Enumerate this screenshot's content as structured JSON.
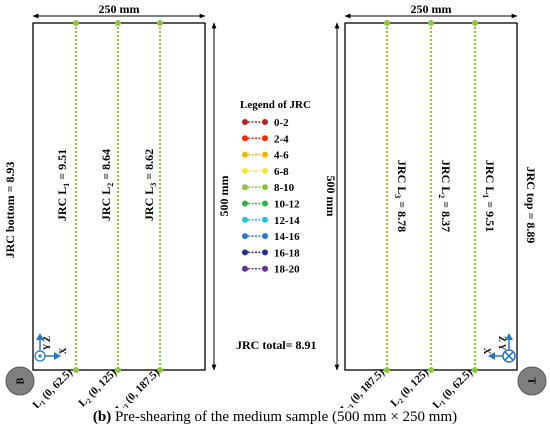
{
  "dimensions": {
    "width_label": "250 mm",
    "height_label": "500 mm"
  },
  "legend": {
    "title": "Legend of JRC",
    "entries": [
      {
        "label": "0-2",
        "color": "#b22222"
      },
      {
        "label": "2-4",
        "color": "#ff2a00"
      },
      {
        "label": "4-6",
        "color": "#f6b400"
      },
      {
        "label": "6-8",
        "color": "#f2ea35"
      },
      {
        "label": "8-10",
        "color": "#8cc641"
      },
      {
        "label": "10-12",
        "color": "#2fb24c"
      },
      {
        "label": "12-14",
        "color": "#1fc4d9"
      },
      {
        "label": "14-16",
        "color": "#2a78c4"
      },
      {
        "label": "16-18",
        "color": "#1f2f8c"
      },
      {
        "label": "18-20",
        "color": "#6a2c91"
      }
    ]
  },
  "bottom_panel": {
    "edge_label": "JRC bottom = 8.93",
    "badge": "B",
    "lines": [
      {
        "label_pre": "JRC L",
        "sub": "1",
        "label_post": " = 9.51",
        "coord_sub": "1",
        "coord": " (0, 62.5)",
        "color": "#8cc641"
      },
      {
        "label_pre": "JRC L",
        "sub": "2",
        "label_post": " = 8.64",
        "coord_sub": "2",
        "coord": " (0, 125)",
        "color": "#8cc641"
      },
      {
        "label_pre": "JRC L",
        "sub": "3",
        "label_post": " = 8.62",
        "coord_sub": "3",
        "coord": " (0, 187.5)",
        "color": "#8cc641"
      }
    ]
  },
  "top_panel": {
    "edge_label": "JRC top = 8.89",
    "badge": "T",
    "lines": [
      {
        "label_pre": "JRC L",
        "sub": "3",
        "label_post": " = 8.78",
        "coord_sub": "3",
        "coord": " (0, 187.5)",
        "color": "#8cc641"
      },
      {
        "label_pre": "JRC L",
        "sub": "2",
        "label_post": " = 8.37",
        "coord_sub": "2",
        "coord": " (0, 125)",
        "color": "#8cc641"
      },
      {
        "label_pre": "JRC L",
        "sub": "1",
        "label_post": " = 9.51",
        "coord_sub": "1",
        "coord": " (0, 62.5)",
        "color": "#8cc641"
      }
    ]
  },
  "axes": {
    "z": "Z",
    "y": "Y",
    "x": "X",
    "color": "#2a78c4"
  },
  "total_label": "JRC total= 8.91",
  "caption": {
    "tag": "(b)",
    "text": " Pre-shearing of the medium sample (500 mm × 250 mm)"
  },
  "line_color": "#8cc641",
  "badge_color": "#808080"
}
